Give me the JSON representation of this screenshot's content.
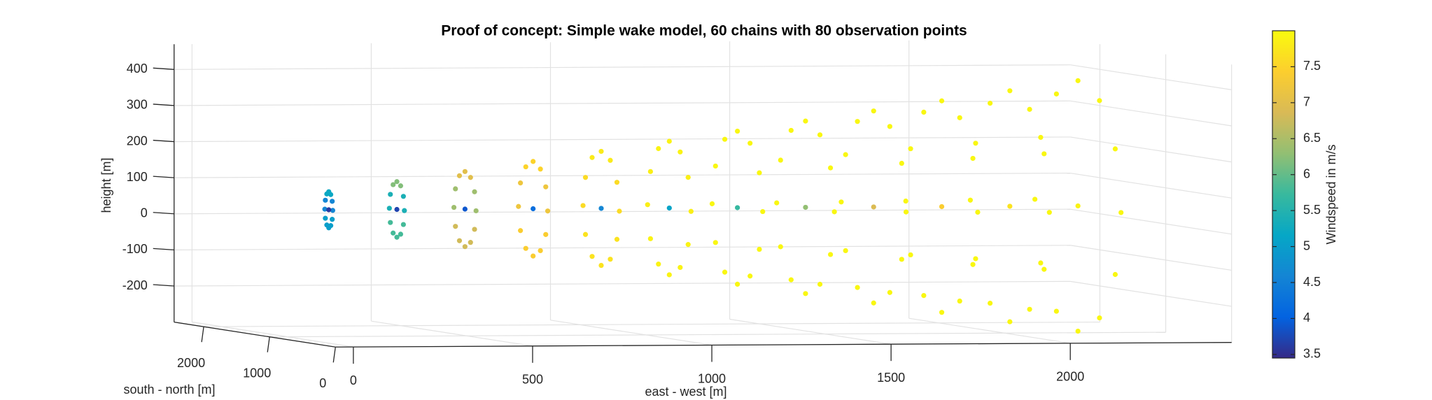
{
  "chart_data": {
    "type": "scatter3d",
    "title": "Proof of concept: Simple wake model, 60 chains with 80 observation points",
    "xlabel": "east - west [m]",
    "ylabel": "south - north [m]",
    "zlabel": "height [m]",
    "xlim": [
      -50,
      2450
    ],
    "ylim": [
      0,
      2450
    ],
    "zlim": [
      -300,
      470
    ],
    "xticks": [
      0,
      500,
      1000,
      1500,
      2000
    ],
    "yticks": [
      0,
      1000,
      2000
    ],
    "zticks": [
      -200,
      -100,
      0,
      100,
      200,
      300,
      400
    ],
    "grid": true,
    "colorbar": {
      "label": "Windspeed in m/s",
      "clim": [
        3.45,
        8.0
      ],
      "ticks": [
        3.5,
        4,
        4.5,
        5,
        5.5,
        6,
        6.5,
        7,
        7.5
      ],
      "colormap": [
        "#352a87",
        "#0363e1",
        "#1485d4",
        "#06a7c6",
        "#38b99e",
        "#92bf73",
        "#d9ba56",
        "#fcce2e",
        "#f9fb0e"
      ]
    },
    "series": [
      {
        "x": [
          60,
          250,
          440,
          630,
          820,
          1010,
          1200,
          1390,
          1580,
          1770,
          1960,
          2150
        ],
        "y": [
          760,
          814,
          868,
          922,
          976,
          1030,
          1084,
          1138,
          1192,
          1246,
          1300,
          1354
        ],
        "z": [
          60,
          60,
          60,
          60,
          60,
          60,
          60,
          60,
          60,
          60,
          60,
          60
        ],
        "values": [
          4.6,
          5.4,
          6.4,
          7.2,
          7.6,
          7.85,
          7.95,
          7.95,
          7.95,
          7.95,
          7.95,
          7.95
        ]
      },
      {
        "x": [
          60,
          250,
          440,
          630,
          820,
          1010,
          1200,
          1390,
          1580,
          1770,
          1960,
          2150
        ],
        "y": [
          752,
          799,
          845,
          892,
          939,
          986,
          1033,
          1079,
          1126,
          1173,
          1220,
          1266
        ],
        "z": [
          85,
          99,
          112,
          126,
          139,
          153,
          166,
          180,
          193,
          207,
          220,
          234
        ],
        "values": [
          4.6,
          5.4,
          6.4,
          7.2,
          7.6,
          7.85,
          7.95,
          7.95,
          7.95,
          7.95,
          7.95,
          7.95
        ]
      },
      {
        "x": [
          60,
          250,
          440,
          630,
          820,
          1010,
          1200,
          1390,
          1580,
          1770,
          1960,
          2150
        ],
        "y": [
          730,
          757,
          784,
          811,
          838,
          865,
          892,
          919,
          946,
          973,
          1000,
          1027
        ],
        "z": [
          103,
          127,
          150,
          173,
          197,
          220,
          244,
          267,
          290,
          314,
          337,
          361
        ],
        "values": [
          5.2,
          6.2,
          7.0,
          7.5,
          7.8,
          7.9,
          7.95,
          7.95,
          7.95,
          7.95,
          7.95,
          7.95
        ]
      },
      {
        "x": [
          60,
          250,
          440,
          630,
          820,
          1010,
          1200,
          1390,
          1580,
          1770,
          1960,
          2150
        ],
        "y": [
          700,
          700,
          700,
          700,
          700,
          700,
          700,
          700,
          700,
          700,
          700,
          700
        ],
        "z": [
          110,
          137,
          164,
          191,
          218,
          245,
          272,
          299,
          326,
          353,
          380,
          407
        ],
        "values": [
          5.2,
          6.2,
          7.0,
          7.5,
          7.8,
          7.9,
          7.95,
          7.95,
          7.95,
          7.95,
          7.95,
          7.95
        ]
      },
      {
        "x": [
          60,
          250,
          440,
          630,
          820,
          1010,
          1200,
          1390,
          1580,
          1770,
          1960,
          2150
        ],
        "y": [
          670,
          643,
          616,
          589,
          562,
          535,
          508,
          481,
          454,
          427,
          400,
          373
        ],
        "z": [
          103,
          127,
          150,
          173,
          197,
          220,
          244,
          267,
          290,
          314,
          337,
          361
        ],
        "values": [
          5.2,
          6.2,
          7.0,
          7.5,
          7.8,
          7.9,
          7.95,
          7.95,
          7.95,
          7.95,
          7.95,
          7.95
        ]
      },
      {
        "x": [
          60,
          250,
          440,
          630,
          820,
          1010,
          1200,
          1390,
          1580,
          1770,
          1960,
          2150
        ],
        "y": [
          648,
          601,
          555,
          508,
          461,
          414,
          367,
          321,
          274,
          227,
          180,
          134
        ],
        "z": [
          85,
          99,
          112,
          126,
          139,
          153,
          166,
          180,
          193,
          207,
          220,
          234
        ],
        "values": [
          4.6,
          5.4,
          6.4,
          7.2,
          7.6,
          7.85,
          7.95,
          7.95,
          7.95,
          7.95,
          7.95,
          7.95
        ]
      },
      {
        "x": [
          60,
          250,
          440,
          630,
          820,
          1010,
          1200,
          1390,
          1580,
          1770,
          1960,
          2150
        ],
        "y": [
          640,
          586,
          532,
          478,
          424,
          370,
          316,
          262,
          208,
          154,
          100,
          46
        ],
        "z": [
          60,
          60,
          60,
          60,
          60,
          60,
          60,
          60,
          60,
          60,
          60,
          60
        ],
        "values": [
          4.6,
          5.4,
          6.4,
          7.2,
          7.6,
          7.85,
          7.95,
          7.95,
          7.95,
          7.95,
          7.95,
          7.95
        ]
      },
      {
        "x": [
          60,
          250,
          440,
          630,
          820,
          1010,
          1200,
          1390,
          1580,
          1770,
          1960,
          2150
        ],
        "y": [
          648,
          601,
          555,
          508,
          461,
          414,
          367,
          321,
          274,
          227,
          180,
          134
        ],
        "z": [
          35,
          21,
          8,
          -6,
          -19,
          -33,
          -46,
          -60,
          -73,
          -87,
          -100,
          -114
        ],
        "values": [
          5.0,
          5.8,
          6.8,
          7.4,
          7.7,
          7.9,
          7.95,
          7.95,
          7.95,
          7.95,
          7.95,
          7.95
        ]
      },
      {
        "x": [
          60,
          250,
          440,
          630,
          820,
          1010,
          1200,
          1390,
          1580,
          1770,
          1960,
          2150
        ],
        "y": [
          670,
          643,
          616,
          589,
          562,
          535,
          508,
          481,
          454,
          427,
          400,
          373
        ],
        "z": [
          17,
          -7,
          -30,
          -53,
          -77,
          -100,
          -124,
          -147,
          -170,
          -194,
          -217,
          -241
        ],
        "values": [
          5.0,
          5.8,
          6.8,
          7.4,
          7.7,
          7.9,
          7.95,
          7.95,
          7.95,
          7.95,
          7.95,
          7.95
        ]
      },
      {
        "x": [
          60,
          250,
          440,
          630,
          820,
          1010,
          1200,
          1390,
          1580,
          1770,
          1960,
          2150
        ],
        "y": [
          700,
          700,
          700,
          700,
          700,
          700,
          700,
          700,
          700,
          700,
          700,
          700
        ],
        "z": [
          10,
          -17,
          -44,
          -71,
          -98,
          -125,
          -152,
          -179,
          -206,
          -233,
          -260,
          -287
        ],
        "values": [
          5.0,
          5.8,
          6.8,
          7.4,
          7.7,
          7.9,
          7.95,
          7.95,
          7.95,
          7.95,
          7.95,
          7.95
        ]
      },
      {
        "x": [
          60,
          250,
          440,
          630,
          820,
          1010,
          1200,
          1390,
          1580,
          1770,
          1960,
          2150
        ],
        "y": [
          730,
          757,
          784,
          811,
          838,
          865,
          892,
          919,
          946,
          973,
          1000,
          1027
        ],
        "z": [
          17,
          -7,
          -30,
          -53,
          -77,
          -100,
          -124,
          -147,
          -170,
          -194,
          -217,
          -241
        ],
        "values": [
          5.0,
          5.8,
          6.8,
          7.4,
          7.7,
          7.9,
          7.95,
          7.95,
          7.95,
          7.95,
          7.95,
          7.95
        ]
      },
      {
        "x": [
          60,
          250,
          440,
          630,
          820,
          1010,
          1200,
          1390,
          1580,
          1770,
          1960,
          2150
        ],
        "y": [
          752,
          799,
          845,
          892,
          939,
          986,
          1033,
          1079,
          1126,
          1173,
          1220,
          1266
        ],
        "z": [
          35,
          21,
          8,
          -6,
          -19,
          -33,
          -46,
          -60,
          -73,
          -87,
          -100,
          -114
        ],
        "values": [
          5.0,
          5.8,
          6.8,
          7.4,
          7.7,
          7.9,
          7.95,
          7.95,
          7.95,
          7.95,
          7.95,
          7.95
        ]
      },
      {
        "x": [
          60,
          250,
          440,
          630,
          820,
          1010,
          1200,
          1390,
          1580,
          1770,
          1960,
          2150
        ],
        "y": [
          700,
          700,
          700,
          700,
          700,
          700,
          700,
          700,
          700,
          700,
          700,
          700
        ],
        "z": [
          60,
          60,
          60,
          60,
          60,
          60,
          60,
          60,
          60,
          60,
          60,
          60
        ],
        "values": [
          3.6,
          3.7,
          3.9,
          4.2,
          4.6,
          5.1,
          5.7,
          6.3,
          6.9,
          7.4,
          7.7,
          7.9
        ]
      }
    ]
  }
}
